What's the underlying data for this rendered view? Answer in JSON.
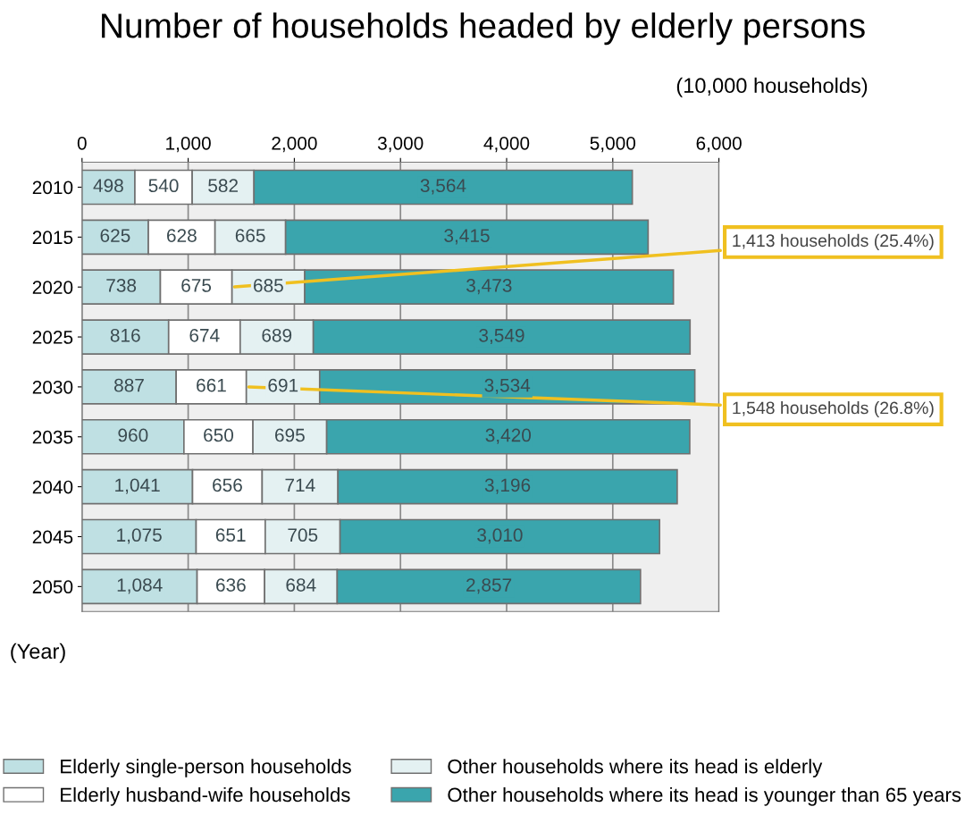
{
  "chart_data": {
    "type": "bar",
    "orientation": "horizontal",
    "stacked": true,
    "title": "Number of households headed by elderly persons",
    "xlabel": "(10,000 households)",
    "ylabel": "(Year)",
    "categories": [
      "2010",
      "2015",
      "2020",
      "2025",
      "2030",
      "2035",
      "2040",
      "2045",
      "2050"
    ],
    "series": [
      {
        "name": "Elderly single-person households",
        "color": "#bfe0e3",
        "values": [
          498,
          625,
          738,
          816,
          887,
          960,
          1041,
          1075,
          1084
        ],
        "value_labels": [
          "498",
          "625",
          "738",
          "816",
          "887",
          "960",
          "1,041",
          "1,075",
          "1,084"
        ]
      },
      {
        "name": "Elderly husband-wife households",
        "color": "#ffffff",
        "values": [
          540,
          628,
          675,
          674,
          661,
          650,
          656,
          651,
          636
        ]
      },
      {
        "name": "Other households where its head is elderly",
        "color": "#e4f1f2",
        "values": [
          582,
          665,
          685,
          689,
          691,
          695,
          714,
          705,
          684
        ]
      },
      {
        "name": "Other households where its head is younger than 65 years",
        "color": "#3aa5ad",
        "values": [
          3564,
          3415,
          3473,
          3549,
          3534,
          3420,
          3196,
          3010,
          2857
        ],
        "value_labels": [
          "3,564",
          "3,415",
          "3,473",
          "3,549",
          "3,534",
          "3,420",
          "3,196",
          "3,010",
          "2,857"
        ]
      }
    ],
    "xlim": [
      0,
      6000
    ],
    "xticks": [
      0,
      {
        "value": 1000,
        "label": "1,000"
      },
      {
        "value": 2000,
        "label": "2,000"
      },
      {
        "value": 3000,
        "label": "3,000"
      },
      {
        "value": 4000,
        "label": "4,000"
      },
      {
        "value": 5000,
        "label": "5,000"
      },
      {
        "value": 6000,
        "label": "6,000"
      }
    ],
    "grid": "x",
    "legend": "bottom",
    "data_labels": true,
    "annotations": [
      {
        "text": "1,413 households (25.4%)",
        "x": 1413,
        "y": "2020"
      },
      {
        "text": "1,548 households (26.8%)",
        "x": 1548,
        "y": "2030"
      }
    ]
  }
}
